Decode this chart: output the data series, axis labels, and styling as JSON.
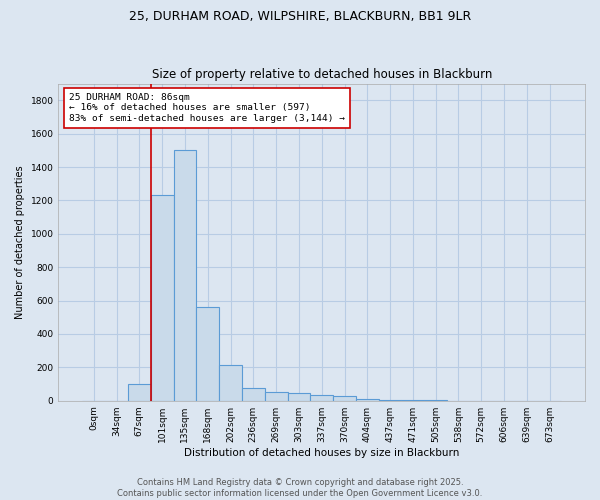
{
  "title": "25, DURHAM ROAD, WILPSHIRE, BLACKBURN, BB1 9LR",
  "subtitle": "Size of property relative to detached houses in Blackburn",
  "xlabel": "Distribution of detached houses by size in Blackburn",
  "ylabel": "Number of detached properties",
  "bar_labels": [
    "0sqm",
    "34sqm",
    "67sqm",
    "101sqm",
    "135sqm",
    "168sqm",
    "202sqm",
    "236sqm",
    "269sqm",
    "303sqm",
    "337sqm",
    "370sqm",
    "404sqm",
    "437sqm",
    "471sqm",
    "505sqm",
    "538sqm",
    "572sqm",
    "606sqm",
    "639sqm",
    "673sqm"
  ],
  "bar_values": [
    0,
    0,
    100,
    1230,
    1500,
    560,
    215,
    75,
    55,
    45,
    32,
    28,
    8,
    5,
    3,
    2,
    1,
    1,
    0,
    0,
    0
  ],
  "bar_color": "#c9daea",
  "bar_edge_color": "#5b9bd5",
  "bar_edge_width": 0.8,
  "property_line_x": 2.5,
  "property_line_color": "#cc0000",
  "annotation_text": "25 DURHAM ROAD: 86sqm\n← 16% of detached houses are smaller (597)\n83% of semi-detached houses are larger (3,144) →",
  "annotation_box_color": "#ffffff",
  "annotation_box_edge": "#cc0000",
  "ylim": [
    0,
    1900
  ],
  "yticks": [
    0,
    200,
    400,
    600,
    800,
    1000,
    1200,
    1400,
    1600,
    1800
  ],
  "grid_color": "#b8cce4",
  "background_color": "#dce6f1",
  "footer_line1": "Contains HM Land Registry data © Crown copyright and database right 2025.",
  "footer_line2": "Contains public sector information licensed under the Open Government Licence v3.0.",
  "title_fontsize": 9,
  "xlabel_fontsize": 7.5,
  "ylabel_fontsize": 7,
  "tick_fontsize": 6.5,
  "annotation_fontsize": 6.8,
  "footer_fontsize": 6
}
